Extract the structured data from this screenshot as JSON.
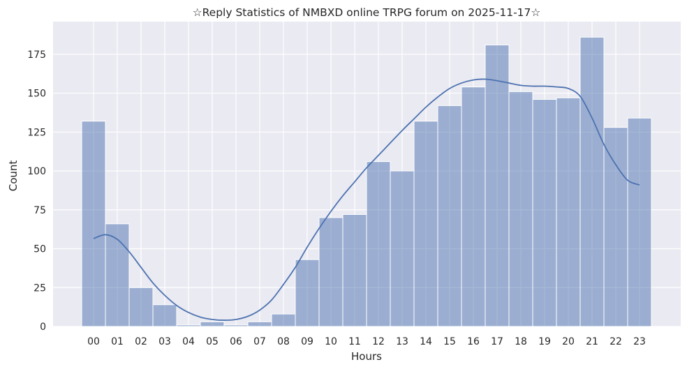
{
  "chart_data": {
    "type": "bar",
    "title": "☆Reply Statistics of NMBXD online TRPG forum on 2025-11-17☆",
    "xlabel": "Hours",
    "ylabel": "Count",
    "categories": [
      "00",
      "01",
      "02",
      "03",
      "04",
      "05",
      "06",
      "07",
      "08",
      "09",
      "10",
      "11",
      "12",
      "13",
      "14",
      "15",
      "16",
      "17",
      "18",
      "19",
      "20",
      "21",
      "22",
      "23"
    ],
    "values": [
      132,
      66,
      25,
      14,
      1,
      3,
      1,
      3,
      8,
      43,
      70,
      72,
      106,
      100,
      132,
      142,
      154,
      181,
      151,
      146,
      147,
      186,
      128,
      134
    ],
    "ylim": [
      0,
      196
    ],
    "yticks": [
      0,
      25,
      50,
      75,
      100,
      125,
      150,
      175
    ],
    "grid": true,
    "kde": {
      "x": [
        0,
        0.5,
        1,
        1.5,
        2,
        2.5,
        3,
        3.5,
        4,
        4.5,
        5,
        5.5,
        6,
        6.5,
        7,
        7.5,
        8,
        8.5,
        9,
        9.5,
        10,
        10.5,
        11,
        11.5,
        12,
        12.5,
        13,
        13.5,
        14,
        14.5,
        15,
        15.5,
        16,
        16.5,
        17,
        17.5,
        18,
        18.5,
        19,
        19.5,
        20,
        20.5,
        21,
        21.5,
        22,
        22.5,
        23
      ],
      "y": [
        56.5,
        59,
        56,
        48,
        38,
        28,
        20,
        13.5,
        9,
        6,
        4.5,
        4,
        4.5,
        6.5,
        10.5,
        17,
        27,
        38,
        51,
        63,
        74,
        84,
        93,
        102,
        110,
        118,
        126,
        133.5,
        141,
        147.5,
        153,
        156.5,
        158.5,
        159,
        158,
        156.5,
        155,
        154.5,
        154.5,
        154,
        153,
        148,
        134,
        117,
        104,
        94,
        91
      ]
    },
    "colors": {
      "bar": "#4c72b0",
      "line": "#4c72b0",
      "background": "#eaeaf2",
      "grid": "#ffffff"
    }
  }
}
